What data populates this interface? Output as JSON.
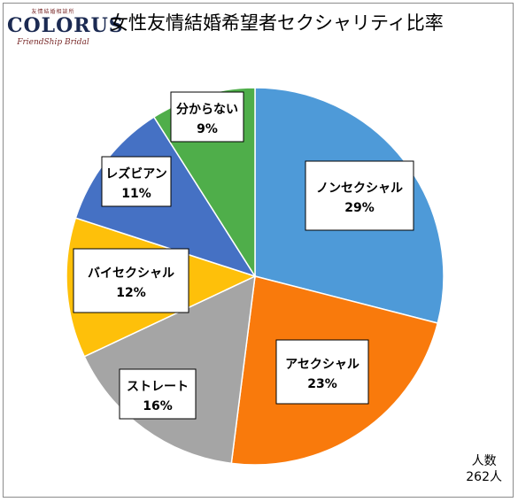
{
  "logo": {
    "small_text": "友情結婚相談所",
    "main_text": "COLORUS",
    "sub_text": "FriendShip Bridal"
  },
  "title": "女性友情結婚希望者セクシャリティ比率",
  "footnote": {
    "line1": "人数",
    "line2": "262人"
  },
  "chart_data": {
    "type": "pie",
    "title": "女性友情結婚希望者セクシャリティ比率",
    "slices": [
      {
        "label": "ノンセクシャル",
        "value": 29,
        "display": "29%",
        "color": "#4e9ad8"
      },
      {
        "label": "アセクシャル",
        "value": 23,
        "display": "23%",
        "color": "#f97a0c"
      },
      {
        "label": "ストレート",
        "value": 16,
        "display": "16%",
        "color": "#a5a5a5"
      },
      {
        "label": "バイセクシャル",
        "value": 12,
        "display": "12%",
        "color": "#fec00a"
      },
      {
        "label": "レズビアン",
        "value": 11,
        "display": "11%",
        "color": "#4571c4"
      },
      {
        "label": "分からない",
        "value": 9,
        "display": "9%",
        "color": "#4fae4a"
      }
    ],
    "start_angle_deg": 0,
    "direction": "clockwise",
    "legend": "none"
  }
}
